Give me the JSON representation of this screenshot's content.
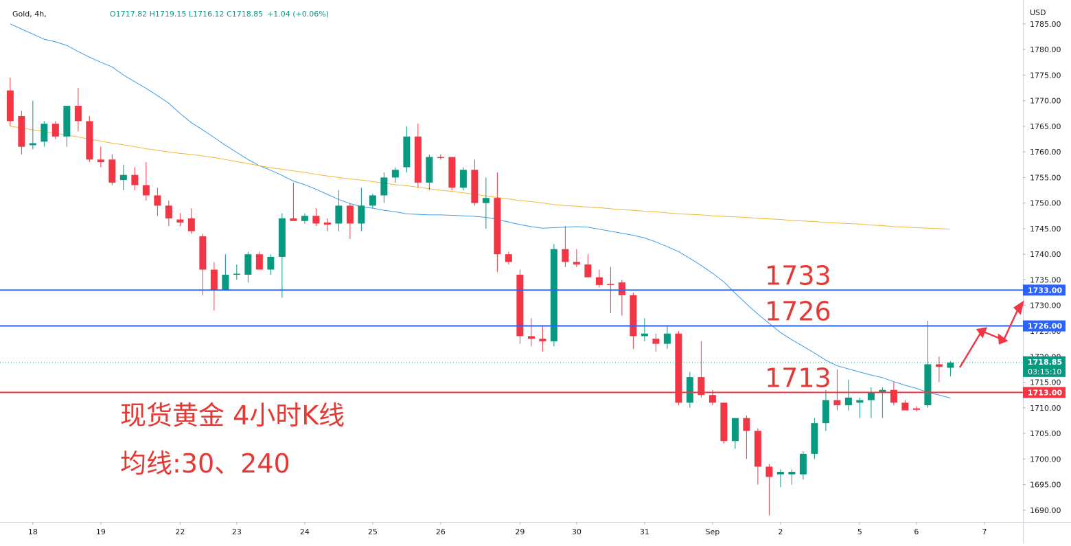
{
  "chart_data": {
    "type": "candlestick",
    "symbol": "Gold, 4h,",
    "ohlc": "O1717.82 H1719.15 L1716.12 C1718.85",
    "change": "+1.04 (+0.06%)",
    "currency": "USD",
    "up_color": "#089981",
    "down_color": "#f23645",
    "x": [
      0,
      1,
      2,
      3,
      4,
      5,
      6,
      7,
      8,
      9,
      10,
      11,
      12,
      13,
      14,
      15,
      16,
      17,
      18,
      19,
      20,
      21,
      22,
      23,
      24,
      25,
      26,
      27,
      28,
      29,
      30,
      31,
      32,
      33,
      34,
      35,
      36,
      37,
      38,
      39,
      40,
      41,
      42,
      43,
      44,
      45,
      46,
      47,
      48,
      49,
      50,
      51,
      52,
      53,
      54,
      55,
      56,
      57,
      58,
      59,
      60,
      61,
      62,
      63,
      64,
      65,
      66,
      67,
      68,
      69,
      70,
      71,
      72,
      73,
      74,
      75,
      76,
      77,
      78,
      79,
      80,
      81,
      82,
      83
    ],
    "open": [
      1772,
      1767,
      1761.3,
      1762,
      1765.5,
      1763,
      1769,
      1766,
      1758.5,
      1758.5,
      1754.5,
      1755.5,
      1753.5,
      1751.5,
      1749.5,
      1746.8,
      1747,
      1743.5,
      1737,
      1733,
      1736,
      1736,
      1740,
      1737,
      1739.5,
      1747,
      1746.5,
      1747.5,
      1746.2,
      1746,
      1749.5,
      1746,
      1749.5,
      1751.5,
      1755,
      1757,
      1763,
      1754,
      1759,
      1759,
      1753,
      1756.5,
      1750,
      1751,
      1740,
      1736,
      1724,
      1723.5,
      1723,
      1741,
      1738.5,
      1738,
      1735.5,
      1734.2,
      1734.5,
      1732,
      1724,
      1723.5,
      1722.5,
      1724.5,
      1711,
      1716,
      1712.5,
      1711,
      1703.5,
      1708,
      1705.5,
      1698.5,
      1697,
      1697,
      1697,
      1701,
      1707,
      1711.5,
      1710.5,
      1711,
      1711.5,
      1713,
      1713.5,
      1711,
      1709.9,
      1710.5,
      1718.5,
      1717.82
    ],
    "high": [
      1774.5,
      1768,
      1770,
      1766,
      1766,
      1769,
      1772.5,
      1767,
      1761,
      1759.5,
      1757.5,
      1757,
      1758,
      1753,
      1750.5,
      1748,
      1749,
      1744,
      1738.5,
      1740,
      1738,
      1740.5,
      1740.5,
      1740,
      1748,
      1754,
      1748,
      1749,
      1747,
      1752.5,
      1750,
      1753,
      1751.8,
      1756,
      1757,
      1765,
      1765.5,
      1759.5,
      1759.5,
      1759,
      1757,
      1758.5,
      1755,
      1756,
      1740.5,
      1737,
      1727.5,
      1726,
      1742,
      1745.5,
      1741,
      1740,
      1737,
      1737.5,
      1735,
      1732.5,
      1727.5,
      1724.5,
      1726,
      1725,
      1717,
      1723,
      1713.5,
      1711,
      1708,
      1708.5,
      1706,
      1699,
      1698,
      1698,
      1701.5,
      1708,
      1713.5,
      1717.5,
      1715.5,
      1712,
      1714,
      1714,
      1715,
      1711.5,
      1710.3,
      1727,
      1720,
      1719.15
    ],
    "low": [
      1765,
      1759.5,
      1760.5,
      1761,
      1762.5,
      1761,
      1764,
      1758,
      1757,
      1753.5,
      1752.5,
      1752.5,
      1750.5,
      1747.5,
      1745.5,
      1745.5,
      1744,
      1732,
      1729,
      1733,
      1735,
      1734.5,
      1737,
      1736,
      1731.5,
      1746.5,
      1746,
      1745.5,
      1744.5,
      1744.5,
      1743,
      1744.5,
      1749,
      1750,
      1754,
      1756,
      1753,
      1752.5,
      1758.5,
      1752.5,
      1752.5,
      1749.5,
      1745,
      1736.5,
      1738,
      1722.5,
      1722,
      1721,
      1722,
      1737.5,
      1737.5,
      1735.5,
      1733.5,
      1728.5,
      1728,
      1721.5,
      1723,
      1721,
      1721.5,
      1710.5,
      1710,
      1712,
      1710.5,
      1703,
      1702,
      1700,
      1695,
      1689,
      1694.5,
      1695,
      1696,
      1700,
      1705.5,
      1709.5,
      1709.5,
      1708,
      1708,
      1708,
      1710.5,
      1709.5,
      1709.3,
      1710,
      1715,
      1716.12
    ],
    "close": [
      1766,
      1761,
      1761.7,
      1765.5,
      1763,
      1769,
      1766,
      1758.5,
      1758,
      1754,
      1755.5,
      1753.5,
      1751.5,
      1749.5,
      1747,
      1746.2,
      1744.5,
      1737,
      1733,
      1736,
      1736.2,
      1740,
      1737,
      1739.5,
      1747,
      1746.5,
      1747.5,
      1746,
      1745.8,
      1749.5,
      1746,
      1749.5,
      1751.5,
      1755,
      1756.5,
      1763,
      1754,
      1759,
      1758.8,
      1753,
      1756.5,
      1750,
      1751,
      1740,
      1738.5,
      1724,
      1723.5,
      1723,
      1741,
      1738.5,
      1738,
      1735.5,
      1734,
      1734,
      1732,
      1724,
      1724.5,
      1722.5,
      1724.5,
      1711,
      1716,
      1712.5,
      1711,
      1703.5,
      1708,
      1705.5,
      1698.5,
      1696.5,
      1697.5,
      1697.5,
      1701,
      1707,
      1711.5,
      1710.5,
      1712,
      1711.5,
      1713,
      1713.5,
      1711,
      1709.5,
      1709.6,
      1718.5,
      1718,
      1718.85
    ],
    "series": [
      {
        "name": "MA30",
        "color": "#3d9be9",
        "values": [
          1785,
          1784,
          1783,
          1782,
          1781.5,
          1780.8,
          1779.6,
          1778.5,
          1777.5,
          1776.6,
          1775,
          1773.7,
          1772.4,
          1771,
          1769.5,
          1767.5,
          1765.7,
          1764.3,
          1762.8,
          1761.3,
          1759.9,
          1758.5,
          1757.3,
          1756.4,
          1755.4,
          1754.3,
          1753.6,
          1752.7,
          1751.7,
          1750.7,
          1749.9,
          1749.3,
          1749,
          1748.6,
          1748.3,
          1747.9,
          1747.8,
          1747.7,
          1747.7,
          1747.6,
          1747.5,
          1747.4,
          1747.2,
          1746.8,
          1746.3,
          1745.8,
          1745.4,
          1745.1,
          1745.2,
          1745.3,
          1745.4,
          1745.3,
          1744.9,
          1744.5,
          1744.1,
          1743.7,
          1743.2,
          1742.4,
          1741.5,
          1740.5,
          1739.2,
          1737.8,
          1736.3,
          1734.6,
          1732.4,
          1730.3,
          1728.3,
          1726.5,
          1724.7,
          1723.3,
          1722,
          1720.7,
          1719.3,
          1718.2,
          1717.6,
          1717,
          1716.4,
          1715.9,
          1715.1,
          1714.4,
          1713.8,
          1713,
          1712.5,
          1711.9
        ]
      },
      {
        "name": "MA240",
        "color": "#f2b735",
        "values": [
          1765,
          1764.7,
          1764.3,
          1764,
          1763.6,
          1763.3,
          1762.9,
          1762.5,
          1762.1,
          1761.7,
          1761.4,
          1761,
          1760.6,
          1760.3,
          1760,
          1759.7,
          1759.5,
          1759.2,
          1758.9,
          1758.5,
          1758.1,
          1757.7,
          1757.3,
          1756.9,
          1756.6,
          1756.3,
          1756,
          1755.6,
          1755.3,
          1755,
          1754.7,
          1754.5,
          1754.2,
          1753.9,
          1753.6,
          1753.4,
          1753.1,
          1752.8,
          1752.5,
          1752.3,
          1752,
          1751.7,
          1751.4,
          1751.1,
          1750.8,
          1750.5,
          1750.3,
          1750,
          1749.7,
          1749.5,
          1749.4,
          1749.2,
          1749.1,
          1748.9,
          1748.7,
          1748.6,
          1748.4,
          1748.3,
          1748.1,
          1747.9,
          1747.8,
          1747.7,
          1747.5,
          1747.4,
          1747.3,
          1747.2,
          1747,
          1746.9,
          1746.8,
          1746.6,
          1746.5,
          1746.4,
          1746.2,
          1746.1,
          1746,
          1745.9,
          1745.7,
          1745.6,
          1745.4,
          1745.3,
          1745.2,
          1745.1,
          1745,
          1744.9
        ]
      }
    ],
    "xlim": [
      -0.9,
      89.4
    ],
    "xticks": [
      {
        "value": 2,
        "label": "18"
      },
      {
        "value": 8,
        "label": "19"
      },
      {
        "value": 15,
        "label": "22"
      },
      {
        "value": 20,
        "label": "23"
      },
      {
        "value": 26,
        "label": "24"
      },
      {
        "value": 32,
        "label": "25"
      },
      {
        "value": 38,
        "label": "26"
      },
      {
        "value": 45,
        "label": "29"
      },
      {
        "value": 50,
        "label": "30"
      },
      {
        "value": 56,
        "label": "31"
      },
      {
        "value": 62,
        "label": "Sep"
      },
      {
        "value": 68,
        "label": "2"
      },
      {
        "value": 75,
        "label": "5"
      },
      {
        "value": 80,
        "label": "6"
      },
      {
        "value": 86,
        "label": "7"
      }
    ],
    "ylim": [
      1687.7,
      1789.0
    ],
    "yticks": [
      {
        "value": 1690,
        "label": "1690.00"
      },
      {
        "value": 1695,
        "label": "1695.00"
      },
      {
        "value": 1700,
        "label": "1700.00"
      },
      {
        "value": 1705,
        "label": "1705.00"
      },
      {
        "value": 1710,
        "label": "1710.00"
      },
      {
        "value": 1715,
        "label": "1715.00"
      },
      {
        "value": 1720,
        "label": "1720.00"
      },
      {
        "value": 1725,
        "label": "1725.00"
      },
      {
        "value": 1730,
        "label": "1730.00"
      },
      {
        "value": 1735,
        "label": "1735.00"
      },
      {
        "value": 1740,
        "label": "1740.00"
      },
      {
        "value": 1745,
        "label": "1745.00"
      },
      {
        "value": 1750,
        "label": "1750.00"
      },
      {
        "value": 1755,
        "label": "1755.00"
      },
      {
        "value": 1760,
        "label": "1760.00"
      },
      {
        "value": 1765,
        "label": "1765.00"
      },
      {
        "value": 1770,
        "label": "1770.00"
      },
      {
        "value": 1775,
        "label": "1775.00"
      },
      {
        "value": 1780,
        "label": "1780.00"
      },
      {
        "value": 1785,
        "label": "1785.00"
      }
    ],
    "levels": [
      {
        "value": 1733,
        "label": "1733",
        "badge": "1733.00",
        "color": "#2962ff"
      },
      {
        "value": 1726,
        "label": "1726",
        "badge": "1726.00",
        "color": "#2962ff"
      },
      {
        "value": 1713,
        "label": "1713",
        "badge": "1713.00",
        "color": "#f23645"
      }
    ],
    "last": {
      "value": 1718.85,
      "badge": "1718.85",
      "countdown": "03:15:10"
    },
    "annotations": [
      "现货黄金 4小时K线",
      "均线:30、240"
    ],
    "grid": false
  }
}
